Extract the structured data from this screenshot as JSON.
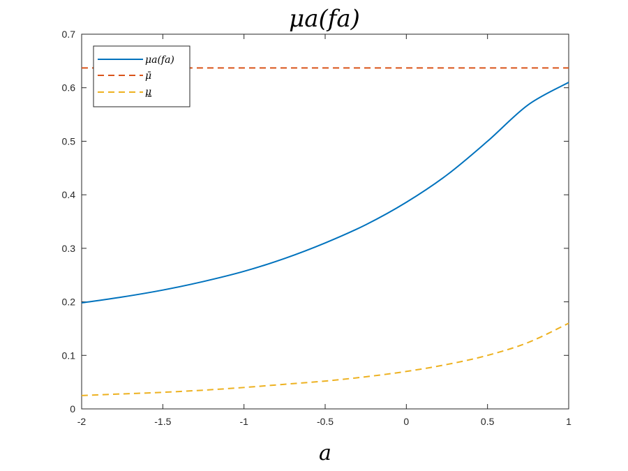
{
  "chart_data": {
    "type": "line",
    "title": "μa(fa)",
    "xlabel": "a",
    "ylabel": "",
    "xlim": [
      -2,
      1
    ],
    "ylim": [
      0,
      0.7
    ],
    "x_ticks": [
      "-2",
      "-1.5",
      "-1",
      "-0.5",
      "0",
      "0.5",
      "1"
    ],
    "y_ticks": [
      "0",
      "0.1",
      "0.2",
      "0.3",
      "0.4",
      "0.5",
      "0.6",
      "0.7"
    ],
    "grid": false,
    "legend_position": "top-left",
    "series": [
      {
        "name": "μa(fa)",
        "style": "solid",
        "color": "#0072BD",
        "x": [
          -2,
          -1.75,
          -1.5,
          -1.25,
          -1,
          -0.75,
          -0.5,
          -0.25,
          0,
          0.25,
          0.5,
          0.75,
          1
        ],
        "y": [
          0.198,
          0.209,
          0.222,
          0.238,
          0.257,
          0.281,
          0.31,
          0.344,
          0.386,
          0.437,
          0.5,
          0.568,
          0.61
        ]
      },
      {
        "name": "μ̄",
        "style": "dashed",
        "color": "#D95319",
        "x": [
          -2,
          1
        ],
        "y": [
          0.637,
          0.637
        ]
      },
      {
        "name": "μ",
        "style": "dashed",
        "underline_label": true,
        "color": "#EDB120",
        "x": [
          -2,
          -1.75,
          -1.5,
          -1.25,
          -1,
          -0.75,
          -0.5,
          -0.25,
          0,
          0.25,
          0.5,
          0.75,
          1
        ],
        "y": [
          0.025,
          0.028,
          0.031,
          0.035,
          0.04,
          0.046,
          0.052,
          0.06,
          0.07,
          0.083,
          0.1,
          0.124,
          0.16
        ]
      }
    ]
  }
}
